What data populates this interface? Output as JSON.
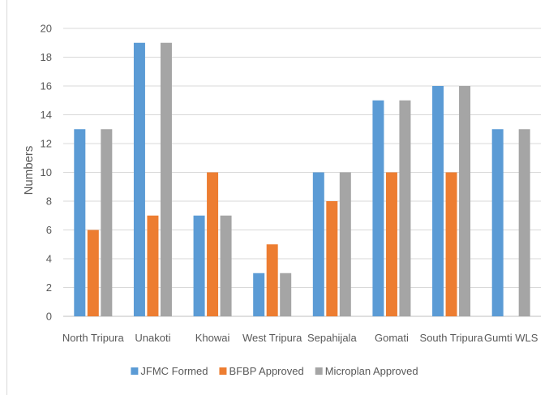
{
  "chart_data": {
    "type": "bar",
    "title": "",
    "xlabel": "",
    "ylabel": "Numbers",
    "ylim": [
      0,
      20
    ],
    "yticks": [
      0,
      2,
      4,
      6,
      8,
      10,
      12,
      14,
      16,
      18,
      20
    ],
    "grid": true,
    "legend_position": "bottom",
    "categories": [
      "North Tripura",
      "Unakoti",
      "Khowai",
      "West Tripura",
      "Sepahijala",
      "Gomati",
      "South Tripura",
      "Gumti WLS"
    ],
    "series": [
      {
        "name": "JFMC Formed",
        "color": "#5b9bd5",
        "values": [
          13,
          19,
          7,
          3,
          10,
          15,
          16,
          13
        ]
      },
      {
        "name": "BFBP Approved",
        "color": "#ed7d31",
        "values": [
          6,
          7,
          10,
          5,
          8,
          10,
          10,
          0
        ]
      },
      {
        "name": "Microplan Approved",
        "color": "#a5a5a5",
        "values": [
          13,
          19,
          7,
          3,
          10,
          15,
          16,
          13
        ]
      }
    ]
  }
}
